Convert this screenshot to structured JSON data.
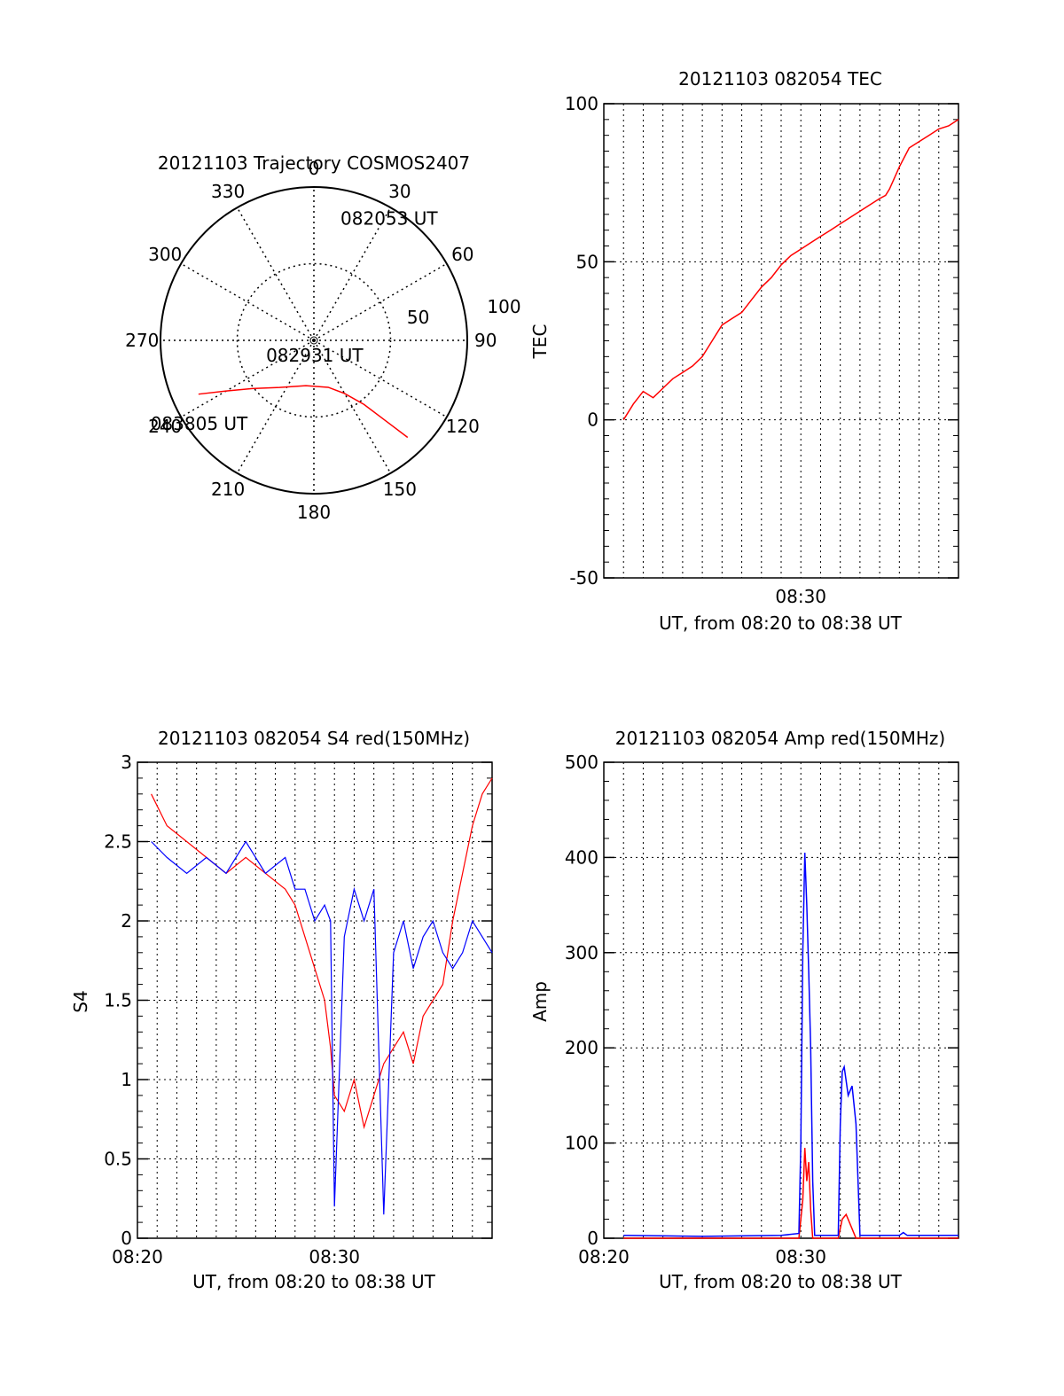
{
  "chart_data": [
    {
      "id": "trajectory",
      "type": "polar",
      "title": "20121103 Trajectory COSMOS2407",
      "azimuth_ticks": [
        0,
        30,
        60,
        90,
        120,
        150,
        180,
        210,
        240,
        270,
        300,
        330
      ],
      "radial_ticks": [
        50,
        100
      ],
      "r_max": 100,
      "grid": true,
      "series": [
        {
          "color": "#ff0000",
          "points": [
            {
              "az": 245,
              "r": 83
            },
            {
              "az": 240,
              "r": 66
            },
            {
              "az": 232,
              "r": 51
            },
            {
              "az": 216,
              "r": 38
            },
            {
              "az": 190,
              "r": 30
            },
            {
              "az": 163,
              "r": 32
            },
            {
              "az": 150,
              "r": 40
            },
            {
              "az": 142,
              "r": 53
            },
            {
              "az": 138,
              "r": 72
            },
            {
              "az": 136,
              "r": 88
            }
          ]
        }
      ],
      "annotations": [
        {
          "text": "083805 UT",
          "az": 232,
          "r": 95
        },
        {
          "text": "082931 UT",
          "az": 178,
          "r": 14
        },
        {
          "text": "082053 UT",
          "az": 33,
          "r": 90
        }
      ]
    },
    {
      "id": "tec",
      "type": "line",
      "title": "20121103 082054 TEC",
      "xlabel": "UT, from 08:20 to 08:38 UT",
      "ylabel": "TEC",
      "xlim_minutes": [
        20,
        38
      ],
      "ylim": [
        -50,
        100
      ],
      "yticks": [
        -50,
        0,
        50,
        100
      ],
      "xticks": [
        "08:30"
      ],
      "grid": true,
      "series": [
        {
          "color": "#ff0000",
          "x": [
            21.0,
            21.5,
            22.0,
            22.5,
            23.0,
            23.5,
            24.0,
            24.5,
            25.0,
            25.5,
            26.0,
            26.5,
            27.0,
            27.5,
            28.0,
            28.5,
            29.0,
            29.5,
            30.0,
            30.5,
            31.0,
            31.5,
            32.0,
            32.5,
            33.0,
            33.5,
            34.0,
            34.3,
            34.5,
            35.0,
            35.5,
            36.0,
            36.5,
            37.0,
            37.5,
            38.0
          ],
          "y": [
            0,
            5,
            9,
            7,
            10,
            13,
            15,
            17,
            20,
            25,
            30,
            32,
            34,
            38,
            42,
            45,
            49,
            52,
            54,
            56,
            58,
            60,
            62,
            64,
            66,
            68,
            70,
            71,
            73,
            80,
            86,
            88,
            90,
            92,
            93,
            95
          ]
        }
      ]
    },
    {
      "id": "s4",
      "type": "line",
      "title": "20121103 082054 S4 red(150MHz)",
      "xlabel": "UT, from 08:20 to 08:38 UT",
      "ylabel": "S4",
      "xlim_minutes": [
        20,
        38
      ],
      "ylim": [
        0,
        3
      ],
      "yticks": [
        0,
        0.5,
        1,
        1.5,
        2,
        2.5,
        3
      ],
      "xticks": [
        "08:20",
        "08:30"
      ],
      "grid": true,
      "series": [
        {
          "color": "#ff0000",
          "x": [
            20.7,
            21.5,
            22.5,
            23.5,
            24.5,
            25.5,
            26.5,
            27.5,
            28.0,
            28.5,
            29.0,
            29.5,
            29.8,
            30.0,
            30.5,
            31.0,
            31.5,
            32.0,
            32.5,
            33.0,
            33.5,
            34.0,
            34.5,
            35.0,
            35.5,
            36.0,
            36.5,
            37.0,
            37.5,
            38.0
          ],
          "y": [
            2.8,
            2.6,
            2.5,
            2.4,
            2.3,
            2.4,
            2.3,
            2.2,
            2.1,
            1.9,
            1.7,
            1.5,
            1.2,
            0.9,
            0.8,
            1.0,
            0.7,
            0.9,
            1.1,
            1.2,
            1.3,
            1.1,
            1.4,
            1.5,
            1.6,
            2.0,
            2.3,
            2.6,
            2.8,
            2.9
          ]
        },
        {
          "color": "#0000ff",
          "x": [
            20.7,
            21.5,
            22.5,
            23.5,
            24.5,
            25.5,
            26.5,
            27.5,
            28.0,
            28.5,
            29.0,
            29.5,
            29.8,
            30.0,
            30.5,
            31.0,
            31.5,
            32.0,
            32.5,
            33.0,
            33.5,
            34.0,
            34.5,
            35.0,
            35.5,
            36.0,
            36.5,
            37.0,
            37.5,
            38.0
          ],
          "y": [
            2.5,
            2.4,
            2.3,
            2.4,
            2.3,
            2.5,
            2.3,
            2.4,
            2.2,
            2.2,
            2.0,
            2.1,
            2.0,
            0.2,
            1.9,
            2.2,
            2.0,
            2.2,
            0.15,
            1.8,
            2.0,
            1.7,
            1.9,
            2.0,
            1.8,
            1.7,
            1.8,
            2.0,
            1.9,
            1.8
          ]
        }
      ]
    },
    {
      "id": "amp",
      "type": "line",
      "title": "20121103 082054 Amp red(150MHz)",
      "xlabel": "UT, from 08:20 to 08:38 UT",
      "ylabel": "Amp",
      "xlim_minutes": [
        20,
        38
      ],
      "ylim": [
        0,
        500
      ],
      "yticks": [
        0,
        100,
        200,
        300,
        400,
        500
      ],
      "xticks": [
        "08:20",
        "08:30"
      ],
      "grid": true,
      "series": [
        {
          "color": "#ff0000",
          "x": [
            21.0,
            25.0,
            29.9,
            30.1,
            30.2,
            30.3,
            30.4,
            30.5,
            30.6,
            31.9,
            32.1,
            32.3,
            32.6,
            32.8,
            34.0,
            38.0
          ],
          "y": [
            0,
            0,
            0,
            40,
            95,
            60,
            80,
            30,
            0,
            0,
            20,
            25,
            10,
            0,
            0,
            0
          ]
        },
        {
          "color": "#0000ff",
          "x": [
            21.0,
            25.0,
            29.0,
            29.9,
            30.0,
            30.1,
            30.2,
            30.3,
            30.4,
            30.5,
            30.6,
            30.7,
            31.9,
            32.0,
            32.1,
            32.2,
            32.4,
            32.6,
            32.8,
            33.0,
            34.0,
            35.0,
            35.2,
            35.4,
            38.0
          ],
          "y": [
            3,
            2,
            3,
            5,
            100,
            300,
            405,
            350,
            280,
            200,
            60,
            3,
            3,
            120,
            175,
            180,
            150,
            160,
            120,
            3,
            3,
            3,
            6,
            3,
            3
          ]
        }
      ]
    }
  ]
}
